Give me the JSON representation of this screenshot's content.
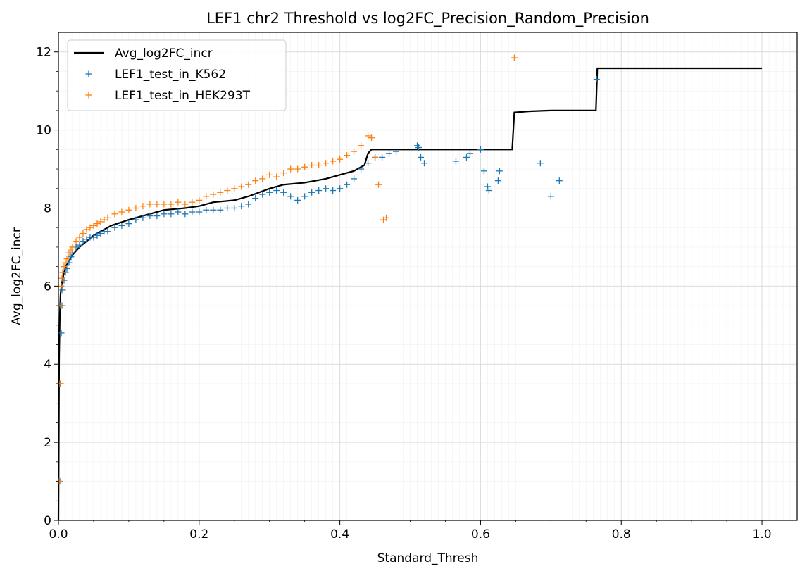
{
  "chart_data": {
    "type": "line",
    "title": "LEF1 chr2 Threshold vs log2FC_Precision_Random_Precision",
    "xlabel": "Standard_Thresh",
    "ylabel": "Avg_log2FC_incr",
    "xlim": [
      0.0,
      1.05
    ],
    "ylim": [
      0,
      12.5
    ],
    "x_ticks": [
      0.0,
      0.2,
      0.4,
      0.6,
      0.8,
      1.0
    ],
    "x_tick_labels": [
      "0.0",
      "0.2",
      "0.4",
      "0.6",
      "0.8",
      "1.0"
    ],
    "y_ticks": [
      0,
      2,
      4,
      6,
      8,
      10,
      12
    ],
    "y_tick_labels": [
      "0",
      "2",
      "4",
      "6",
      "8",
      "10",
      "12"
    ],
    "grid": true,
    "minor_grid": true,
    "legend_position": "top-left",
    "series": [
      {
        "name": "Avg_log2FC_incr",
        "kind": "line",
        "color": "#000000",
        "x": [
          0.0,
          0.001,
          0.002,
          0.003,
          0.005,
          0.008,
          0.012,
          0.02,
          0.03,
          0.05,
          0.075,
          0.1,
          0.13,
          0.15,
          0.18,
          0.2,
          0.22,
          0.25,
          0.27,
          0.3,
          0.32,
          0.35,
          0.38,
          0.4,
          0.42,
          0.435,
          0.44,
          0.445,
          0.5,
          0.55,
          0.6,
          0.645,
          0.648,
          0.67,
          0.7,
          0.764,
          0.766,
          0.8,
          1.0
        ],
        "y": [
          0.0,
          4.2,
          5.3,
          5.8,
          6.1,
          6.35,
          6.55,
          6.8,
          7.0,
          7.3,
          7.55,
          7.7,
          7.85,
          7.95,
          8.0,
          8.05,
          8.15,
          8.2,
          8.3,
          8.5,
          8.6,
          8.65,
          8.75,
          8.85,
          8.95,
          9.1,
          9.4,
          9.5,
          9.5,
          9.5,
          9.5,
          9.5,
          10.45,
          10.48,
          10.5,
          10.5,
          11.58,
          11.58,
          11.58
        ]
      },
      {
        "name": "LEF1_test_in_K562",
        "kind": "scatter",
        "marker": "+",
        "color": "#1f77b4",
        "x": [
          0.002,
          0.003,
          0.004,
          0.005,
          0.006,
          0.008,
          0.01,
          0.012,
          0.015,
          0.018,
          0.02,
          0.025,
          0.03,
          0.035,
          0.04,
          0.045,
          0.05,
          0.055,
          0.06,
          0.065,
          0.07,
          0.08,
          0.09,
          0.1,
          0.11,
          0.12,
          0.13,
          0.14,
          0.15,
          0.16,
          0.17,
          0.18,
          0.19,
          0.2,
          0.21,
          0.22,
          0.23,
          0.24,
          0.25,
          0.26,
          0.27,
          0.28,
          0.29,
          0.3,
          0.31,
          0.32,
          0.33,
          0.34,
          0.35,
          0.36,
          0.37,
          0.38,
          0.39,
          0.4,
          0.41,
          0.42,
          0.43,
          0.44,
          0.45,
          0.46,
          0.47,
          0.48,
          0.51,
          0.512,
          0.515,
          0.52,
          0.565,
          0.58,
          0.585,
          0.6,
          0.605,
          0.61,
          0.612,
          0.625,
          0.627,
          0.685,
          0.7,
          0.712,
          0.765
        ],
        "y": [
          1.0,
          3.5,
          4.8,
          5.5,
          5.9,
          6.15,
          6.35,
          6.45,
          6.6,
          6.75,
          6.85,
          7.0,
          7.05,
          7.15,
          7.2,
          7.25,
          7.25,
          7.3,
          7.35,
          7.4,
          7.4,
          7.5,
          7.55,
          7.6,
          7.7,
          7.75,
          7.8,
          7.8,
          7.85,
          7.85,
          7.9,
          7.85,
          7.9,
          7.9,
          7.95,
          7.95,
          7.95,
          8.0,
          8.0,
          8.05,
          8.1,
          8.25,
          8.35,
          8.4,
          8.45,
          8.4,
          8.3,
          8.2,
          8.3,
          8.4,
          8.45,
          8.5,
          8.45,
          8.5,
          8.6,
          8.75,
          9.0,
          9.15,
          9.3,
          9.3,
          9.4,
          9.45,
          9.6,
          9.55,
          9.3,
          9.15,
          9.2,
          9.3,
          9.4,
          9.5,
          8.95,
          8.55,
          8.45,
          8.7,
          8.95,
          9.15,
          8.3,
          8.7,
          11.3
        ]
      },
      {
        "name": "LEF1_test_in_HEK293T",
        "kind": "scatter",
        "marker": "+",
        "color": "#ff7f0e",
        "x": [
          0.001,
          0.002,
          0.003,
          0.004,
          0.005,
          0.006,
          0.008,
          0.01,
          0.012,
          0.015,
          0.018,
          0.02,
          0.025,
          0.03,
          0.035,
          0.04,
          0.045,
          0.05,
          0.055,
          0.06,
          0.065,
          0.07,
          0.08,
          0.09,
          0.1,
          0.11,
          0.12,
          0.13,
          0.14,
          0.15,
          0.16,
          0.17,
          0.18,
          0.19,
          0.2,
          0.21,
          0.22,
          0.23,
          0.24,
          0.25,
          0.26,
          0.27,
          0.28,
          0.29,
          0.3,
          0.31,
          0.32,
          0.33,
          0.34,
          0.35,
          0.36,
          0.37,
          0.38,
          0.39,
          0.4,
          0.41,
          0.42,
          0.43,
          0.44,
          0.445,
          0.45,
          0.455,
          0.462,
          0.466,
          0.648
        ],
        "y": [
          1.0,
          3.5,
          5.5,
          6.0,
          6.2,
          6.35,
          6.5,
          6.6,
          6.7,
          6.85,
          6.95,
          7.0,
          7.15,
          7.25,
          7.35,
          7.45,
          7.5,
          7.55,
          7.6,
          7.65,
          7.7,
          7.75,
          7.85,
          7.9,
          7.95,
          8.0,
          8.05,
          8.1,
          8.1,
          8.1,
          8.1,
          8.15,
          8.1,
          8.15,
          8.2,
          8.3,
          8.35,
          8.4,
          8.45,
          8.5,
          8.55,
          8.6,
          8.7,
          8.75,
          8.85,
          8.8,
          8.9,
          9.0,
          9.0,
          9.05,
          9.1,
          9.1,
          9.15,
          9.2,
          9.25,
          9.35,
          9.45,
          9.6,
          9.85,
          9.8,
          9.3,
          8.6,
          7.7,
          7.75,
          11.85
        ]
      }
    ]
  }
}
